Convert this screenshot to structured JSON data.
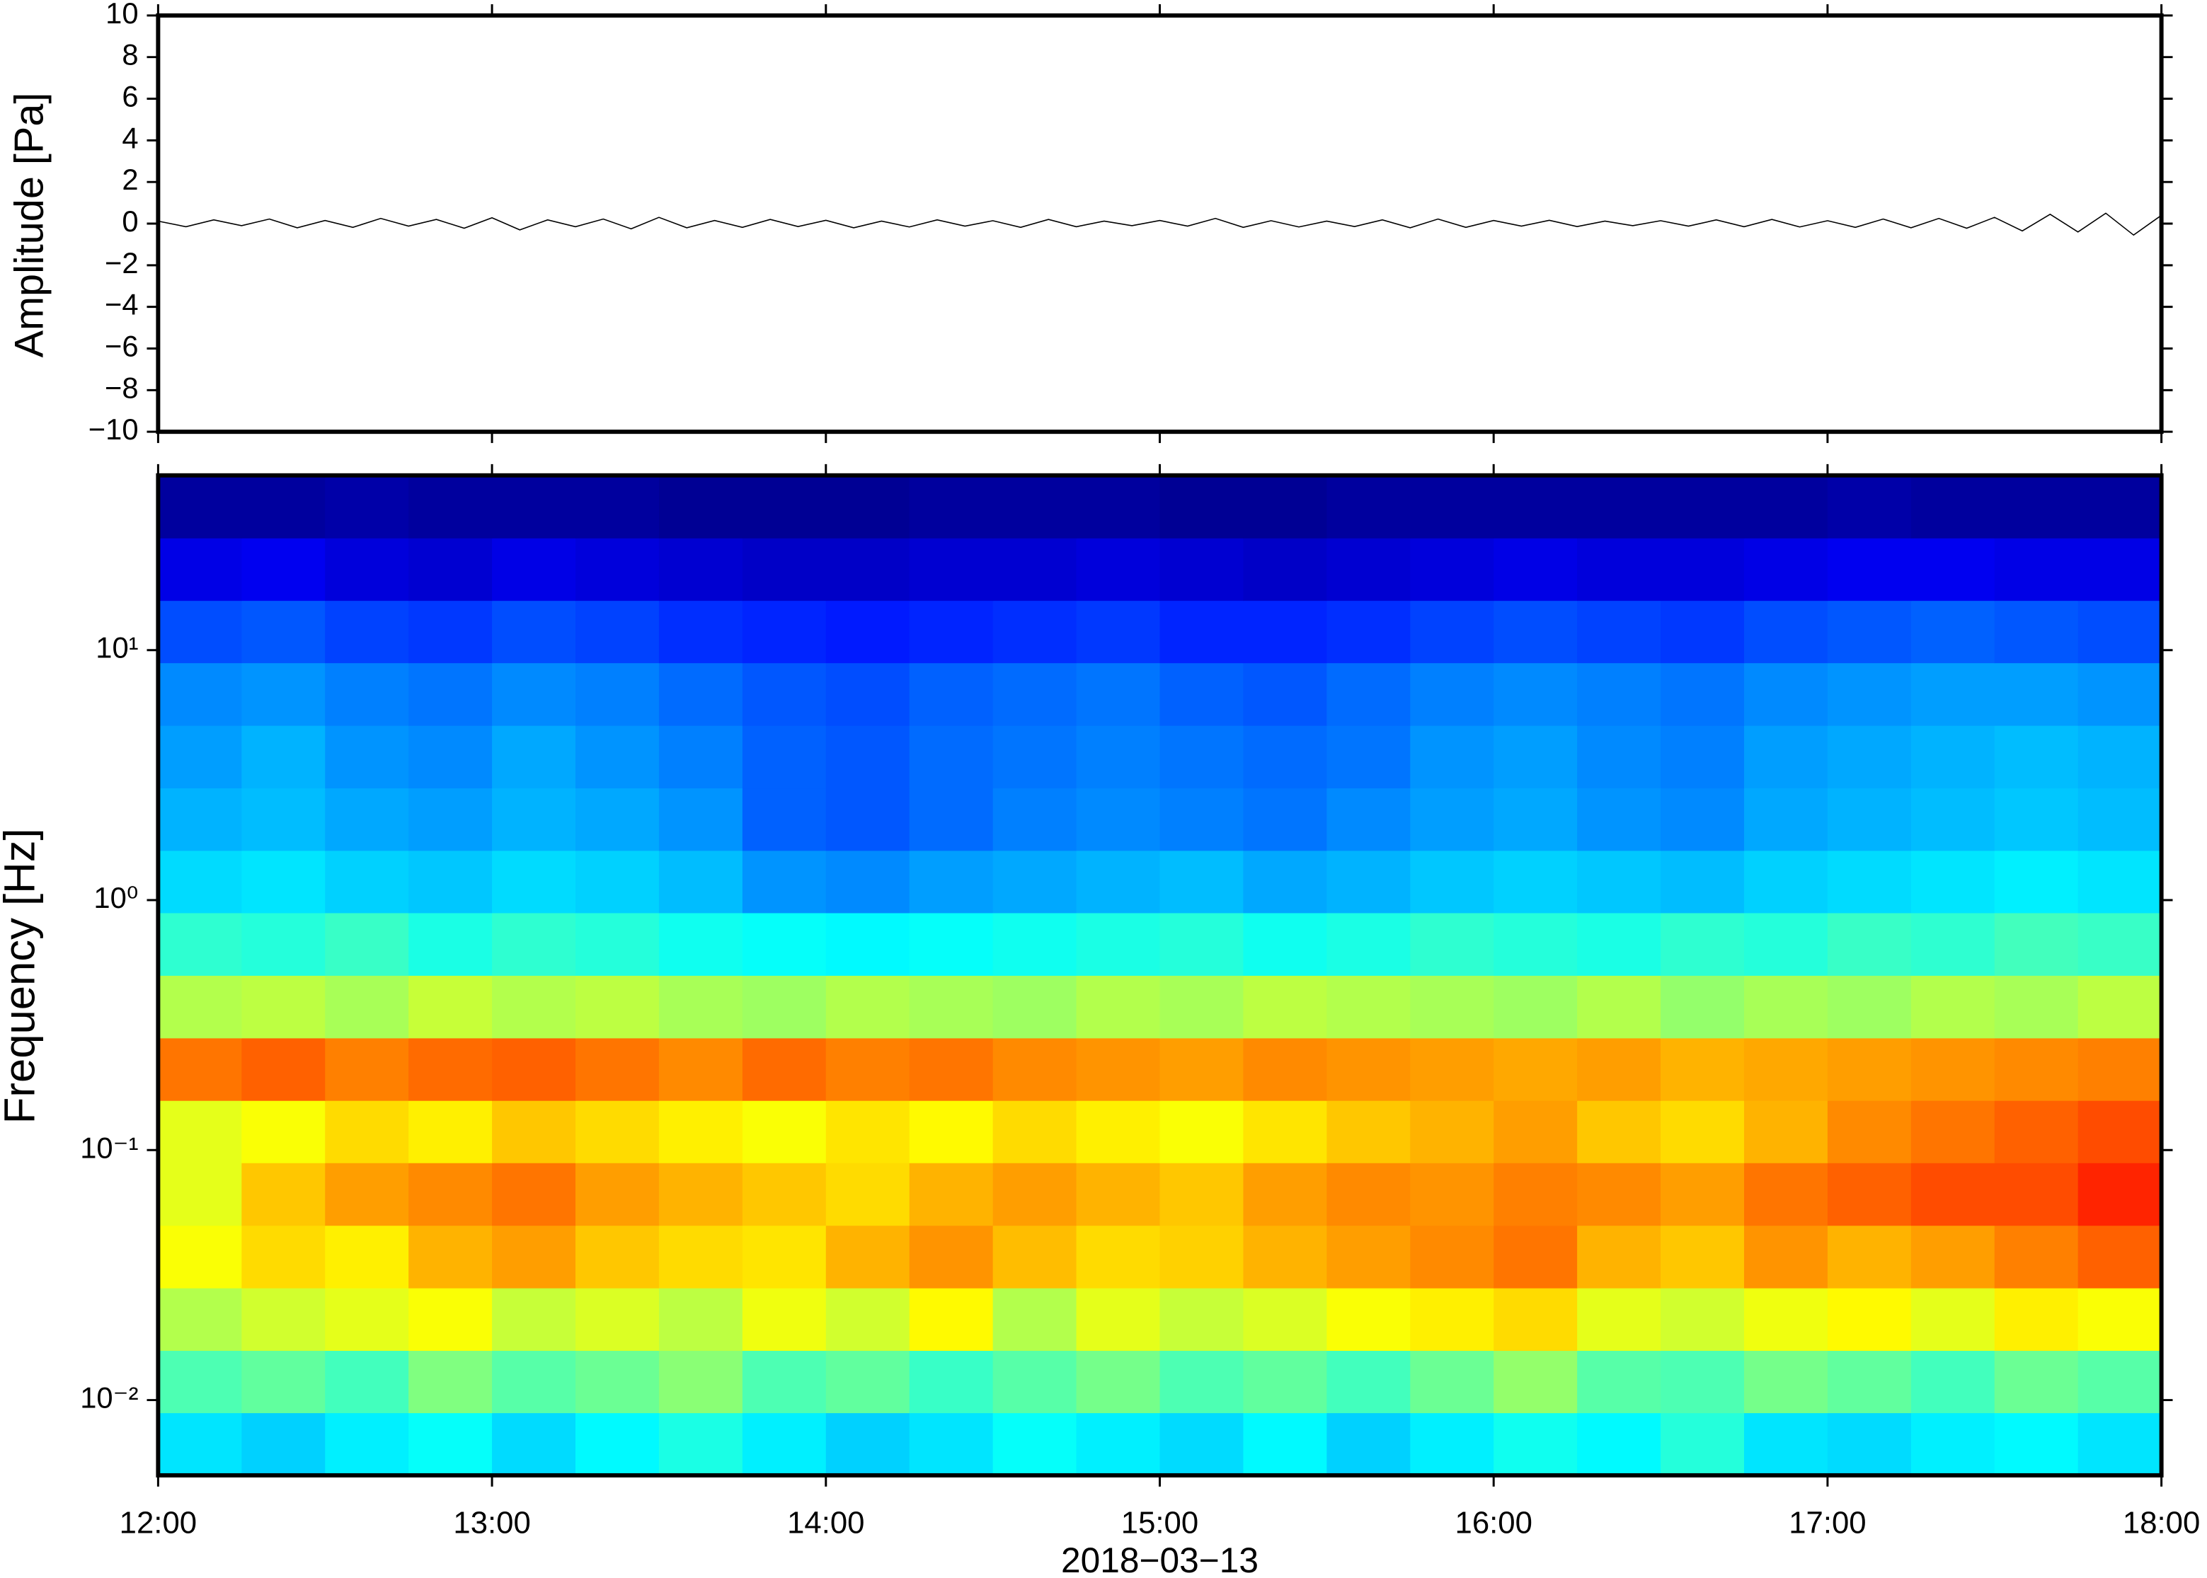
{
  "chart_data": [
    {
      "type": "line",
      "ylabel": "Amplitude [Pa]",
      "color": "#000000",
      "xlim": [
        "12:00",
        "18:00"
      ],
      "ylim": [
        -10,
        10
      ],
      "yticks": [
        {
          "value": -10,
          "label": "−10"
        },
        {
          "value": -8,
          "label": "−8"
        },
        {
          "value": -6,
          "label": "−6"
        },
        {
          "value": -4,
          "label": "−4"
        },
        {
          "value": -2,
          "label": "−2"
        },
        0,
        2,
        4,
        6,
        8,
        10
      ],
      "x": [
        "12:00",
        "12:05",
        "12:10",
        "12:15",
        "12:20",
        "12:25",
        "12:30",
        "12:35",
        "12:40",
        "12:45",
        "12:50",
        "12:55",
        "13:00",
        "13:05",
        "13:10",
        "13:15",
        "13:20",
        "13:25",
        "13:30",
        "13:35",
        "13:40",
        "13:45",
        "13:50",
        "13:55",
        "14:00",
        "14:05",
        "14:10",
        "14:15",
        "14:20",
        "14:25",
        "14:30",
        "14:35",
        "14:40",
        "14:45",
        "14:50",
        "14:55",
        "15:00",
        "15:05",
        "15:10",
        "15:15",
        "15:20",
        "15:25",
        "15:30",
        "15:35",
        "15:40",
        "15:45",
        "15:50",
        "15:55",
        "16:00",
        "16:05",
        "16:10",
        "16:15",
        "16:20",
        "16:25",
        "16:30",
        "16:35",
        "16:40",
        "16:45",
        "16:50",
        "16:55",
        "17:00",
        "17:05",
        "17:10",
        "17:15",
        "17:20",
        "17:25",
        "17:30",
        "17:35",
        "17:40",
        "17:45",
        "17:50",
        "17:55",
        "18:00"
      ],
      "values": [
        0.12,
        -0.15,
        0.18,
        -0.1,
        0.22,
        -0.2,
        0.15,
        -0.18,
        0.25,
        -0.12,
        0.2,
        -0.22,
        0.28,
        -0.3,
        0.18,
        -0.15,
        0.22,
        -0.25,
        0.3,
        -0.2,
        0.15,
        -0.18,
        0.2,
        -0.14,
        0.16,
        -0.2,
        0.12,
        -0.16,
        0.18,
        -0.12,
        0.14,
        -0.18,
        0.2,
        -0.15,
        0.12,
        -0.1,
        0.15,
        -0.12,
        0.25,
        -0.18,
        0.14,
        -0.16,
        0.12,
        -0.14,
        0.18,
        -0.2,
        0.22,
        -0.18,
        0.15,
        -0.12,
        0.16,
        -0.14,
        0.12,
        -0.1,
        0.14,
        -0.12,
        0.18,
        -0.15,
        0.2,
        -0.16,
        0.14,
        -0.18,
        0.22,
        -0.2,
        0.25,
        -0.22,
        0.3,
        -0.35,
        0.45,
        -0.4,
        0.5,
        -0.55,
        0.4
      ]
    },
    {
      "type": "heatmap",
      "ylabel": "Frequency [Hz]",
      "xlabel": "2018−03−13",
      "colormap": "jet",
      "log_y": true,
      "xlim": [
        "12:00",
        "18:00"
      ],
      "xticks": [
        "12:00",
        "13:00",
        "14:00",
        "15:00",
        "16:00",
        "17:00",
        "18:00"
      ],
      "ylim": [
        0.005,
        50
      ],
      "yticks": [
        {
          "value": 0.01,
          "label": "10⁻²"
        },
        {
          "value": 0.1,
          "label": "10⁻¹"
        },
        {
          "value": 1,
          "label": "10⁰"
        },
        {
          "value": 10,
          "label": "10¹"
        }
      ],
      "zlim": [
        0,
        1
      ],
      "xbins": [
        "12:00",
        "12:15",
        "12:30",
        "12:45",
        "13:00",
        "13:15",
        "13:30",
        "13:45",
        "14:00",
        "14:15",
        "14:30",
        "14:45",
        "15:00",
        "15:15",
        "15:30",
        "15:45",
        "16:00",
        "16:15",
        "16:30",
        "16:45",
        "17:00",
        "17:15",
        "17:30",
        "17:45",
        "18:00"
      ],
      "ybins": [
        0.005,
        0.0089,
        0.0158,
        0.0281,
        0.05,
        0.089,
        0.158,
        0.281,
        0.5,
        0.89,
        1.58,
        2.81,
        5,
        8.9,
        15.8,
        28.1,
        50
      ],
      "z": [
        [
          0.35,
          0.33,
          0.36,
          0.38,
          0.34,
          0.37,
          0.4,
          0.36,
          0.33,
          0.35,
          0.38,
          0.36,
          0.34,
          0.37,
          0.33,
          0.36,
          0.39,
          0.37,
          0.41,
          0.35,
          0.34,
          0.36,
          0.37,
          0.35
        ],
        [
          0.45,
          0.47,
          0.44,
          0.5,
          0.46,
          0.48,
          0.51,
          0.45,
          0.47,
          0.43,
          0.46,
          0.49,
          0.45,
          0.47,
          0.44,
          0.48,
          0.52,
          0.46,
          0.45,
          0.49,
          0.47,
          0.44,
          0.48,
          0.46
        ],
        [
          0.55,
          0.58,
          0.6,
          0.62,
          0.57,
          0.59,
          0.56,
          0.61,
          0.58,
          0.63,
          0.55,
          0.6,
          0.57,
          0.59,
          0.62,
          0.64,
          0.66,
          0.6,
          0.58,
          0.61,
          0.63,
          0.6,
          0.64,
          0.62
        ],
        [
          0.62,
          0.66,
          0.64,
          0.7,
          0.72,
          0.68,
          0.66,
          0.65,
          0.7,
          0.73,
          0.69,
          0.66,
          0.67,
          0.7,
          0.72,
          0.74,
          0.76,
          0.7,
          0.68,
          0.73,
          0.7,
          0.72,
          0.75,
          0.78
        ],
        [
          0.6,
          0.68,
          0.72,
          0.74,
          0.76,
          0.72,
          0.7,
          0.68,
          0.66,
          0.7,
          0.72,
          0.7,
          0.68,
          0.72,
          0.74,
          0.73,
          0.75,
          0.74,
          0.72,
          0.76,
          0.78,
          0.8,
          0.8,
          0.84
        ],
        [
          0.6,
          0.62,
          0.66,
          0.64,
          0.68,
          0.66,
          0.64,
          0.62,
          0.65,
          0.63,
          0.66,
          0.64,
          0.62,
          0.65,
          0.68,
          0.7,
          0.72,
          0.68,
          0.66,
          0.7,
          0.74,
          0.76,
          0.78,
          0.8
        ],
        [
          0.76,
          0.78,
          0.75,
          0.77,
          0.78,
          0.76,
          0.74,
          0.77,
          0.75,
          0.76,
          0.74,
          0.73,
          0.72,
          0.74,
          0.73,
          0.72,
          0.71,
          0.72,
          0.7,
          0.71,
          0.72,
          0.73,
          0.74,
          0.75
        ],
        [
          0.55,
          0.56,
          0.54,
          0.57,
          0.55,
          0.56,
          0.54,
          0.53,
          0.55,
          0.54,
          0.53,
          0.55,
          0.54,
          0.56,
          0.55,
          0.54,
          0.53,
          0.55,
          0.52,
          0.54,
          0.53,
          0.55,
          0.54,
          0.56
        ],
        [
          0.42,
          0.41,
          0.43,
          0.4,
          0.42,
          0.41,
          0.39,
          0.38,
          0.37,
          0.38,
          0.39,
          0.4,
          0.41,
          0.39,
          0.4,
          0.42,
          0.41,
          0.4,
          0.42,
          0.41,
          0.43,
          0.42,
          0.44,
          0.43
        ],
        [
          0.34,
          0.35,
          0.33,
          0.32,
          0.34,
          0.33,
          0.31,
          0.27,
          0.26,
          0.28,
          0.29,
          0.3,
          0.31,
          0.29,
          0.3,
          0.32,
          0.33,
          0.32,
          0.31,
          0.33,
          0.34,
          0.35,
          0.36,
          0.35
        ],
        [
          0.3,
          0.31,
          0.29,
          0.28,
          0.3,
          0.29,
          0.27,
          0.22,
          0.21,
          0.23,
          0.25,
          0.26,
          0.25,
          0.24,
          0.26,
          0.28,
          0.29,
          0.27,
          0.26,
          0.29,
          0.3,
          0.31,
          0.32,
          0.31
        ],
        [
          0.28,
          0.3,
          0.27,
          0.26,
          0.29,
          0.27,
          0.25,
          0.22,
          0.21,
          0.23,
          0.24,
          0.25,
          0.24,
          0.23,
          0.24,
          0.27,
          0.28,
          0.26,
          0.25,
          0.28,
          0.29,
          0.3,
          0.31,
          0.3
        ],
        [
          0.26,
          0.27,
          0.25,
          0.24,
          0.26,
          0.25,
          0.23,
          0.21,
          0.2,
          0.22,
          0.23,
          0.24,
          0.22,
          0.21,
          0.23,
          0.25,
          0.26,
          0.25,
          0.24,
          0.26,
          0.27,
          0.28,
          0.28,
          0.27
        ],
        [
          0.2,
          0.21,
          0.19,
          0.18,
          0.2,
          0.19,
          0.17,
          0.16,
          0.15,
          0.16,
          0.17,
          0.18,
          0.16,
          0.16,
          0.17,
          0.19,
          0.2,
          0.19,
          0.18,
          0.2,
          0.21,
          0.22,
          0.21,
          0.2
        ],
        [
          0.1,
          0.11,
          0.09,
          0.08,
          0.1,
          0.09,
          0.08,
          0.07,
          0.07,
          0.08,
          0.08,
          0.09,
          0.08,
          0.07,
          0.08,
          0.09,
          0.1,
          0.09,
          0.09,
          0.1,
          0.11,
          0.11,
          0.1,
          0.1
        ],
        [
          0.03,
          0.03,
          0.04,
          0.03,
          0.03,
          0.03,
          0.02,
          0.02,
          0.02,
          0.03,
          0.03,
          0.03,
          0.02,
          0.02,
          0.03,
          0.03,
          0.03,
          0.03,
          0.03,
          0.03,
          0.04,
          0.03,
          0.03,
          0.03
        ]
      ]
    }
  ]
}
